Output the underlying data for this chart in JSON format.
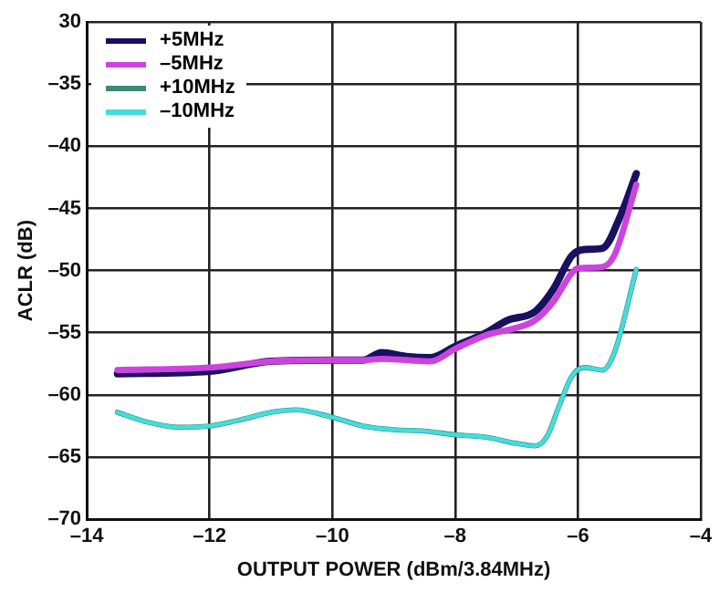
{
  "chart_data": {
    "type": "line",
    "xlabel": "OUTPUT POWER (dBm/3.84MHz)",
    "ylabel": "ACLR (dB)",
    "xlim": [
      -14,
      -4
    ],
    "xticks": [
      {
        "value": -14,
        "label": "–14"
      },
      {
        "value": -12,
        "label": "–12"
      },
      {
        "value": -10,
        "label": "–10"
      },
      {
        "value": -8,
        "label": "–8"
      },
      {
        "value": -6,
        "label": "–6"
      },
      {
        "value": -4,
        "label": "–4"
      }
    ],
    "ylim": [
      -70,
      -30
    ],
    "yticks": [
      {
        "value": -70,
        "label": "–70"
      },
      {
        "value": -65,
        "label": "–65"
      },
      {
        "value": -60,
        "label": "–60"
      },
      {
        "value": -55,
        "label": "–55"
      },
      {
        "value": -50,
        "label": "–50"
      },
      {
        "value": -45,
        "label": "–45"
      },
      {
        "value": -40,
        "label": "–40"
      },
      {
        "value": -35,
        "label": "–35"
      },
      {
        "value": -30,
        "label": "30"
      }
    ],
    "grid": true,
    "legend": "top left",
    "marker": "none",
    "line_style": "solid",
    "series": [
      {
        "name": "+5MHz",
        "color": "#1a1060",
        "x": [
          -13.5,
          -12,
          -11,
          -10,
          -9.5,
          -9.2,
          -8.8,
          -8.4,
          -8,
          -7.5,
          -7.15,
          -6.7,
          -6.4,
          -6.1,
          -5.9,
          -5.6,
          -5.3,
          -5.05
        ],
        "values": [
          -58.3,
          -58.1,
          -57.3,
          -57.2,
          -57.2,
          -56.6,
          -56.9,
          -57,
          -56.1,
          -55,
          -54,
          -53.3,
          -51.5,
          -48.8,
          -48.3,
          -48.2,
          -45.5,
          -42.2
        ]
      },
      {
        "name": "–5MHz",
        "color": "#cc44dd",
        "x": [
          -13.5,
          -12,
          -11,
          -10,
          -9.5,
          -9.2,
          -8.8,
          -8.4,
          -8,
          -7.5,
          -7,
          -6.7,
          -6.4,
          -6.1,
          -6,
          -5.6,
          -5.4,
          -5.05
        ],
        "values": [
          -58,
          -57.8,
          -57.3,
          -57.2,
          -57.2,
          -57.1,
          -57.2,
          -57.3,
          -56.3,
          -55.2,
          -54.6,
          -54,
          -52.5,
          -50.2,
          -49.8,
          -49.7,
          -48.7,
          -43.1
        ]
      },
      {
        "name": "+10MHz",
        "color": "#3a8a78",
        "x": [
          -13.5,
          -13,
          -12.5,
          -12,
          -11.5,
          -11,
          -10.6,
          -10,
          -9.5,
          -9,
          -8.5,
          -8,
          -7.5,
          -7,
          -6.7,
          -6.5,
          -6.3,
          -6.1,
          -5.9,
          -5.6,
          -5.4,
          -5.05
        ],
        "values": [
          -61.4,
          -62.2,
          -62.6,
          -62.5,
          -62,
          -61.4,
          -61.2,
          -61.8,
          -62.5,
          -62.8,
          -62.9,
          -63.2,
          -63.4,
          -63.9,
          -64.1,
          -63.3,
          -60.8,
          -58.5,
          -57.8,
          -58,
          -56.5,
          -49.9
        ]
      },
      {
        "name": "–10MHz",
        "color": "#44dddd",
        "x": [
          -13.5,
          -13,
          -12.5,
          -12,
          -11.5,
          -11,
          -10.6,
          -10,
          -9.5,
          -9,
          -8.5,
          -8,
          -7.5,
          -7,
          -6.7,
          -6.5,
          -6.3,
          -6.1,
          -5.9,
          -5.6,
          -5.4,
          -5.05
        ],
        "values": [
          -61.4,
          -62.2,
          -62.6,
          -62.5,
          -62,
          -61.4,
          -61.2,
          -61.8,
          -62.5,
          -62.8,
          -62.9,
          -63.2,
          -63.4,
          -63.9,
          -64.1,
          -63.3,
          -60.8,
          -58.5,
          -57.8,
          -58,
          -56.5,
          -49.9
        ]
      }
    ]
  }
}
